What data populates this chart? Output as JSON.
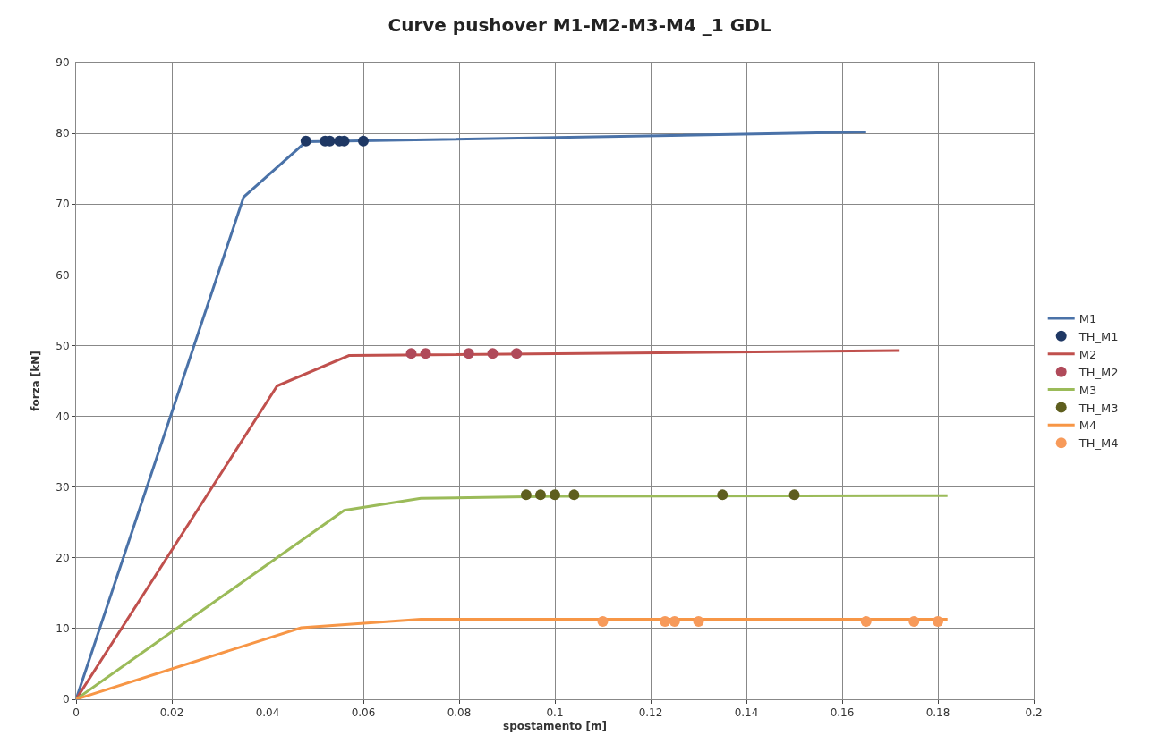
{
  "chart_data": {
    "type": "line",
    "title": "Curve pushover M1-M2-M3-M4 _1 GDL",
    "xlabel": "spostamento [m]",
    "ylabel": "forza [kN]",
    "xlim": [
      0,
      0.2
    ],
    "xticks": [
      0,
      0.02,
      0.04,
      0.06,
      0.08,
      0.1,
      0.12,
      0.14,
      0.16,
      0.18,
      0.2
    ],
    "ylim": [
      0,
      90
    ],
    "yticks": [
      0,
      10,
      20,
      30,
      40,
      50,
      60,
      70,
      80,
      90
    ],
    "grid": true,
    "legend": "right",
    "series": [
      {
        "name": "M1",
        "color": "#4a72a8",
        "x": [
          0,
          0.035,
          0.048,
          0.165
        ],
        "values": [
          0,
          71,
          78.8,
          80.2
        ]
      },
      {
        "name": "TH_M1",
        "type": "scatter",
        "color": "#1f3864",
        "x": [
          0.048,
          0.052,
          0.053,
          0.055,
          0.056,
          0.06
        ],
        "values": [
          78.9,
          78.9,
          78.9,
          78.9,
          78.9,
          78.9
        ]
      },
      {
        "name": "M2",
        "color": "#c0504d",
        "x": [
          0,
          0.042,
          0.057,
          0.172
        ],
        "values": [
          0,
          44.3,
          48.6,
          49.3
        ]
      },
      {
        "name": "TH_M2",
        "type": "scatter",
        "color": "#b04a5a",
        "x": [
          0.07,
          0.073,
          0.082,
          0.087,
          0.092
        ],
        "values": [
          48.9,
          48.9,
          48.9,
          48.9,
          48.9
        ]
      },
      {
        "name": "M3",
        "color": "#9bbb59",
        "x": [
          0,
          0.056,
          0.072,
          0.1,
          0.182
        ],
        "values": [
          0,
          26.7,
          28.4,
          28.7,
          28.8
        ]
      },
      {
        "name": "TH_M3",
        "type": "scatter",
        "color": "#5e5e1e",
        "x": [
          0.094,
          0.097,
          0.1,
          0.104,
          0.135,
          0.15
        ],
        "values": [
          28.9,
          28.9,
          28.9,
          28.9,
          28.9,
          28.9
        ]
      },
      {
        "name": "M4",
        "color": "#f79646",
        "x": [
          0,
          0.047,
          0.072,
          0.182
        ],
        "values": [
          0,
          10.1,
          11.3,
          11.3
        ]
      },
      {
        "name": "TH_M4",
        "type": "scatter",
        "color": "#f79a5a",
        "x": [
          0.11,
          0.123,
          0.125,
          0.13,
          0.165,
          0.175,
          0.18
        ],
        "values": [
          11,
          11,
          11,
          11,
          11,
          11,
          11
        ]
      }
    ]
  }
}
